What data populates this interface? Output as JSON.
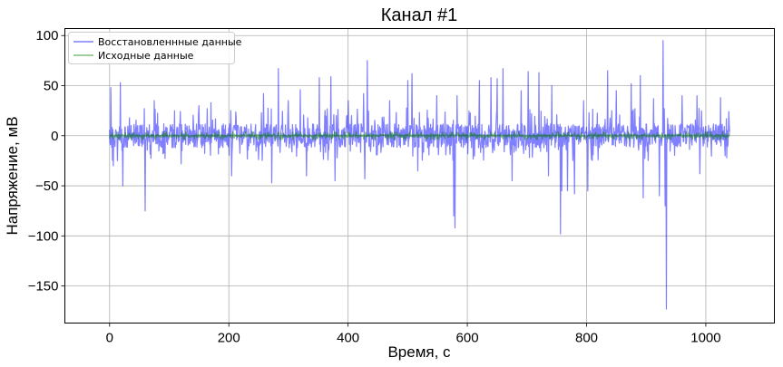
{
  "chart_data": {
    "type": "line",
    "title": "Канал #1",
    "xlabel": "Время, с",
    "ylabel": "Напряжение, мВ",
    "xlim": [
      -75,
      1115
    ],
    "ylim": [
      -187,
      107
    ],
    "xticks": [
      0,
      200,
      400,
      600,
      800,
      1000
    ],
    "yticks": [
      -150,
      -100,
      -50,
      0,
      50,
      100
    ],
    "xtick_labels": [
      "0",
      "200",
      "400",
      "600",
      "800",
      "1000"
    ],
    "ytick_labels": [
      "−150",
      "−100",
      "−50",
      "0",
      "50",
      "100"
    ],
    "grid": true,
    "legend_position": "top-left",
    "series": [
      {
        "name": "Восстановленнные данные",
        "color": "#0000ff",
        "alpha": 0.5,
        "x_range": [
          0,
          1040
        ],
        "base_amplitude": 12,
        "typical_peak_range": [
          -25,
          28
        ],
        "spikes": [
          {
            "x": 2,
            "y": 48
          },
          {
            "x": 6,
            "y": -30
          },
          {
            "x": 18,
            "y": 53
          },
          {
            "x": 22,
            "y": -50
          },
          {
            "x": 60,
            "y": -75
          },
          {
            "x": 75,
            "y": 35
          },
          {
            "x": 120,
            "y": -28
          },
          {
            "x": 150,
            "y": 30
          },
          {
            "x": 170,
            "y": 33
          },
          {
            "x": 205,
            "y": 47
          },
          {
            "x": 205,
            "y": -40
          },
          {
            "x": 258,
            "y": 42
          },
          {
            "x": 272,
            "y": -47
          },
          {
            "x": 283,
            "y": 67
          },
          {
            "x": 300,
            "y": 35
          },
          {
            "x": 320,
            "y": 46
          },
          {
            "x": 330,
            "y": -40
          },
          {
            "x": 352,
            "y": 58
          },
          {
            "x": 371,
            "y": 59
          },
          {
            "x": 378,
            "y": -45
          },
          {
            "x": 400,
            "y": 35
          },
          {
            "x": 426,
            "y": 42
          },
          {
            "x": 428,
            "y": -43
          },
          {
            "x": 432,
            "y": 75
          },
          {
            "x": 470,
            "y": 35
          },
          {
            "x": 500,
            "y": 55
          },
          {
            "x": 507,
            "y": 62
          },
          {
            "x": 517,
            "y": -35
          },
          {
            "x": 549,
            "y": 40
          },
          {
            "x": 577,
            "y": -80
          },
          {
            "x": 579,
            "y": -92
          },
          {
            "x": 583,
            "y": 40
          },
          {
            "x": 620,
            "y": 55
          },
          {
            "x": 640,
            "y": 58
          },
          {
            "x": 650,
            "y": 57
          },
          {
            "x": 660,
            "y": 67
          },
          {
            "x": 675,
            "y": -45
          },
          {
            "x": 690,
            "y": 45
          },
          {
            "x": 702,
            "y": 64
          },
          {
            "x": 720,
            "y": 63
          },
          {
            "x": 736,
            "y": -40
          },
          {
            "x": 742,
            "y": 50
          },
          {
            "x": 756,
            "y": -98
          },
          {
            "x": 758,
            "y": -55
          },
          {
            "x": 768,
            "y": -55
          },
          {
            "x": 780,
            "y": -58
          },
          {
            "x": 795,
            "y": 35
          },
          {
            "x": 802,
            "y": -55
          },
          {
            "x": 835,
            "y": 65
          },
          {
            "x": 850,
            "y": 45
          },
          {
            "x": 875,
            "y": 52
          },
          {
            "x": 890,
            "y": 60
          },
          {
            "x": 895,
            "y": -62
          },
          {
            "x": 912,
            "y": 37
          },
          {
            "x": 922,
            "y": -60
          },
          {
            "x": 928,
            "y": 95
          },
          {
            "x": 932,
            "y": -70
          },
          {
            "x": 934,
            "y": -173
          },
          {
            "x": 960,
            "y": 40
          },
          {
            "x": 985,
            "y": 40
          },
          {
            "x": 990,
            "y": -38
          },
          {
            "x": 1025,
            "y": 38
          },
          {
            "x": 1035,
            "y": -22
          }
        ]
      },
      {
        "name": "Исходные данные",
        "color": "#008000",
        "alpha": 0.5,
        "x_range": [
          0,
          1040
        ],
        "base_amplitude": 1.5,
        "typical_peak_range": [
          -4,
          4
        ]
      }
    ]
  }
}
